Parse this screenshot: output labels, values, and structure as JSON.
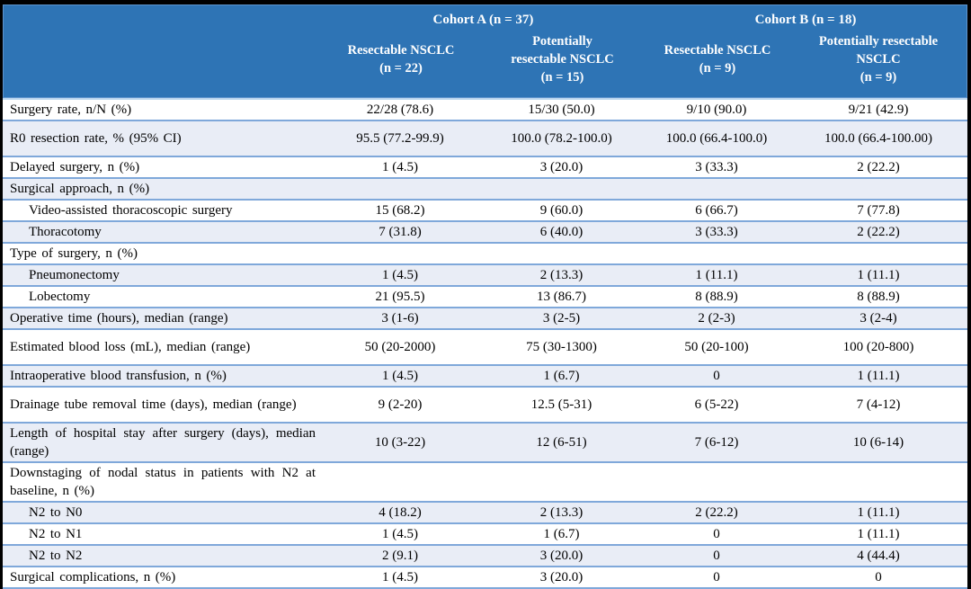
{
  "colors": {
    "header_bg": "#2E74B5",
    "header_text": "#FFFFFF",
    "row_separator": "#7FA8DA",
    "stripe_bg": "#E9EDF6",
    "frame": "#000000"
  },
  "header": {
    "cohorts": [
      "Cohort A (n = 37)",
      "Cohort B (n = 18)"
    ],
    "columns": [
      "Resectable NSCLC\n(n = 22)",
      "Potentially\nresectable NSCLC\n(n = 15)",
      "Resectable NSCLC\n(n = 9)",
      "Potentially resectable\nNSCLC\n(n = 9)"
    ]
  },
  "table": {
    "rows": [
      {
        "label": "Surgery rate, n/N (%)",
        "indent": false,
        "tall": false,
        "values": [
          "22/28 (78.6)",
          "15/30 (50.0)",
          "9/10 (90.0)",
          "9/21 (42.9)"
        ]
      },
      {
        "label": "R0 resection rate, % (95% CI)",
        "indent": false,
        "tall": true,
        "values": [
          "95.5 (77.2-99.9)",
          "100.0 (78.2-100.0)",
          "100.0 (66.4-100.0)",
          "100.0 (66.4-100.00)"
        ]
      },
      {
        "label": "Delayed surgery, n (%)",
        "indent": false,
        "tall": false,
        "values": [
          "1 (4.5)",
          "3 (20.0)",
          "3 (33.3)",
          "2 (22.2)"
        ]
      },
      {
        "label": "Surgical approach, n (%)",
        "indent": false,
        "tall": false,
        "values": [
          "",
          "",
          "",
          ""
        ]
      },
      {
        "label": "Video-assisted thoracoscopic surgery",
        "indent": true,
        "tall": false,
        "values": [
          "15 (68.2)",
          "9 (60.0)",
          "6 (66.7)",
          "7 (77.8)"
        ]
      },
      {
        "label": "Thoracotomy",
        "indent": true,
        "tall": false,
        "values": [
          "7 (31.8)",
          "6 (40.0)",
          "3 (33.3)",
          "2 (22.2)"
        ]
      },
      {
        "label": "Type of surgery, n (%)",
        "indent": false,
        "tall": false,
        "values": [
          "",
          "",
          "",
          ""
        ]
      },
      {
        "label": "Pneumonectomy",
        "indent": true,
        "tall": false,
        "values": [
          "1 (4.5)",
          "2 (13.3)",
          "1 (11.1)",
          "1 (11.1)"
        ]
      },
      {
        "label": "Lobectomy",
        "indent": true,
        "tall": false,
        "values": [
          "21 (95.5)",
          "13 (86.7)",
          "8 (88.9)",
          "8 (88.9)"
        ]
      },
      {
        "label": "Operative time (hours), median (range)",
        "indent": false,
        "tall": false,
        "values": [
          "3 (1-6)",
          "3 (2-5)",
          "2 (2-3)",
          "3 (2-4)"
        ]
      },
      {
        "label": "Estimated blood loss (mL), median (range)",
        "indent": false,
        "tall": true,
        "values": [
          "50 (20-2000)",
          "75 (30-1300)",
          "50 (20-100)",
          "100 (20-800)"
        ]
      },
      {
        "label": "Intraoperative blood transfusion, n (%)",
        "indent": false,
        "tall": false,
        "values": [
          "1 (4.5)",
          "1 (6.7)",
          "0",
          "1 (11.1)"
        ]
      },
      {
        "label": "Drainage tube removal time (days), median (range)",
        "indent": false,
        "tall": true,
        "values": [
          "9 (2-20)",
          "12.5 (5-31)",
          "6 (5-22)",
          "7 (4-12)"
        ]
      },
      {
        "label": "Length of hospital stay after surgery (days), median (range)",
        "indent": false,
        "tall": true,
        "values": [
          "10 (3-22)",
          "12 (6-51)",
          "7 (6-12)",
          "10 (6-14)"
        ]
      },
      {
        "label": "Downstaging of nodal status in patients with N2 at baseline, n (%)",
        "indent": false,
        "tall": true,
        "values": [
          "",
          "",
          "",
          ""
        ]
      },
      {
        "label": "N2 to N0",
        "indent": true,
        "tall": false,
        "values": [
          "4 (18.2)",
          "2 (13.3)",
          "2 (22.2)",
          "1 (11.1)"
        ]
      },
      {
        "label": "N2 to N1",
        "indent": true,
        "tall": false,
        "values": [
          "1 (4.5)",
          "1 (6.7)",
          "0",
          "1 (11.1)"
        ]
      },
      {
        "label": "N2 to N2",
        "indent": true,
        "tall": false,
        "values": [
          "2 (9.1)",
          "3 (20.0)",
          "0",
          "4 (44.4)"
        ]
      },
      {
        "label": "Surgical complications, n (%)",
        "indent": false,
        "tall": false,
        "values": [
          "1 (4.5)",
          "3 (20.0)",
          "0",
          "0"
        ]
      }
    ]
  }
}
